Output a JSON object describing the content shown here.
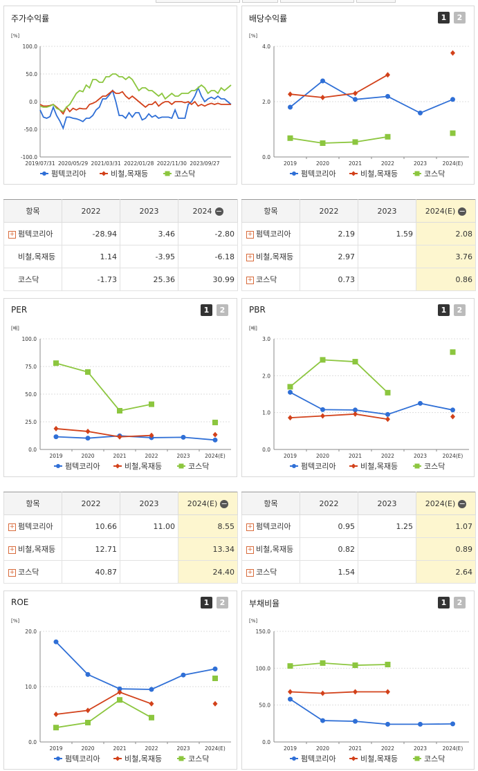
{
  "colors": {
    "company": "#2f6fd6",
    "industry": "#d2411a",
    "kosdaq": "#8cc63f"
  },
  "legend": {
    "company": "펌텍코리아",
    "industry": "비철,목재등",
    "kosdaq": "코스닥"
  },
  "buttons": {
    "one": "1",
    "two": "2"
  },
  "tables": {
    "stock": {
      "headers": [
        "항목",
        "2022",
        "2023",
        "2024"
      ],
      "rows": [
        {
          "label": "펌텍코리아",
          "icon": "+",
          "values": [
            "-28.94",
            "3.46",
            "-2.80"
          ]
        },
        {
          "label": "비철,목재등",
          "icon": "",
          "values": [
            "1.14",
            "-3.95",
            "-6.18"
          ]
        },
        {
          "label": "코스닥",
          "icon": "",
          "values": [
            "-1.73",
            "25.36",
            "30.99"
          ]
        }
      ]
    },
    "dividend": {
      "headers": [
        "항목",
        "2022",
        "2023",
        "2024(E)"
      ],
      "rows": [
        {
          "label": "펌텍코리아",
          "icon": "+",
          "values": [
            "2.19",
            "1.59",
            "2.08"
          ]
        },
        {
          "label": "비철,목재등",
          "icon": "+",
          "values": [
            "2.97",
            "",
            "3.76"
          ]
        },
        {
          "label": "코스닥",
          "icon": "+",
          "values": [
            "0.73",
            "",
            "0.86"
          ]
        }
      ]
    },
    "per": {
      "headers": [
        "항목",
        "2022",
        "2023",
        "2024(E)"
      ],
      "rows": [
        {
          "label": "펌텍코리아",
          "icon": "+",
          "values": [
            "10.66",
            "11.00",
            "8.55"
          ]
        },
        {
          "label": "비철,목재등",
          "icon": "+",
          "values": [
            "12.71",
            "",
            "13.34"
          ]
        },
        {
          "label": "코스닥",
          "icon": "+",
          "values": [
            "40.87",
            "",
            "24.40"
          ]
        }
      ]
    },
    "pbr": {
      "headers": [
        "항목",
        "2022",
        "2023",
        "2024(E)"
      ],
      "rows": [
        {
          "label": "펌텍코리아",
          "icon": "+",
          "values": [
            "0.95",
            "1.25",
            "1.07"
          ]
        },
        {
          "label": "비철,목재등",
          "icon": "+",
          "values": [
            "0.82",
            "",
            "0.89"
          ]
        },
        {
          "label": "코스닥",
          "icon": "+",
          "values": [
            "1.54",
            "",
            "2.64"
          ]
        }
      ]
    }
  },
  "chart_data": [
    {
      "id": "stock",
      "type": "line",
      "title": "주가수익률",
      "unit": "[%]",
      "ylim": [
        -100,
        100
      ],
      "yticks": [
        "100.0",
        "50.0",
        "0.0",
        "-50.0",
        "-100.0"
      ],
      "xticks": [
        "2019/07/31",
        "2020/05/29",
        "2021/03/31",
        "2022/01/28",
        "2022/11/30",
        "2023/09/27"
      ],
      "x_range": [
        0,
        58
      ],
      "series": [
        {
          "key": "company",
          "values": [
            -15,
            -28,
            -30,
            -27,
            -10,
            -25,
            -35,
            -48,
            -28,
            -28,
            -30,
            -31,
            -33,
            -36,
            -30,
            -30,
            -25,
            -15,
            -10,
            5,
            5,
            12,
            20,
            0,
            -25,
            -25,
            -30,
            -20,
            -28,
            -20,
            -20,
            -33,
            -30,
            -22,
            -28,
            -25,
            -30,
            -28,
            -28,
            -28,
            -30,
            -15,
            -30,
            -30,
            -30,
            -5,
            0,
            10,
            25,
            10,
            0,
            5,
            8,
            5,
            10,
            5,
            5,
            0,
            -5
          ]
        },
        {
          "key": "industry",
          "values": [
            -5,
            -8,
            -8,
            -7,
            -5,
            -10,
            -15,
            -22,
            -10,
            -18,
            -12,
            -15,
            -12,
            -13,
            -13,
            -5,
            -3,
            0,
            5,
            10,
            10,
            15,
            20,
            15,
            15,
            18,
            10,
            5,
            10,
            5,
            0,
            -5,
            -10,
            -5,
            -5,
            0,
            -8,
            -3,
            0,
            0,
            -5,
            0,
            0,
            0,
            -2,
            0,
            -5,
            0,
            -8,
            -5,
            -8,
            -5,
            -3,
            -5,
            -3,
            -5,
            -5,
            -5,
            -5
          ]
        },
        {
          "key": "kosdaq",
          "values": [
            -8,
            -10,
            -10,
            -8,
            -5,
            -12,
            -15,
            -18,
            -10,
            -5,
            5,
            15,
            20,
            18,
            30,
            25,
            40,
            40,
            35,
            35,
            45,
            45,
            50,
            50,
            45,
            45,
            40,
            45,
            40,
            30,
            20,
            25,
            25,
            20,
            20,
            15,
            10,
            15,
            5,
            10,
            15,
            10,
            10,
            15,
            15,
            15,
            20,
            20,
            25,
            30,
            25,
            15,
            20,
            20,
            15,
            25,
            20,
            25,
            30
          ]
        }
      ]
    },
    {
      "id": "dividend",
      "type": "line",
      "title": "배당수익률",
      "unit": "[%]",
      "ylim": [
        0,
        4
      ],
      "yticks": [
        "4.0",
        "2.0",
        "0.0"
      ],
      "categories": [
        "2019",
        "2020",
        "2021",
        "2022",
        "2023",
        "2024(E)"
      ],
      "series": [
        {
          "key": "company",
          "values": [
            1.8,
            2.75,
            2.08,
            2.19,
            1.59,
            2.08
          ]
        },
        {
          "key": "industry",
          "values": [
            2.27,
            2.15,
            2.3,
            2.97,
            null,
            3.76
          ]
        },
        {
          "key": "kosdaq",
          "values": [
            0.68,
            0.5,
            0.54,
            0.73,
            null,
            0.86
          ]
        }
      ]
    },
    {
      "id": "per",
      "type": "line",
      "title": "PER",
      "unit": "[배]",
      "ylim": [
        0,
        100
      ],
      "yticks": [
        "100.0",
        "75.0",
        "50.0",
        "25.0",
        "0.0"
      ],
      "categories": [
        "2019",
        "2020",
        "2021",
        "2022",
        "2023",
        "2024(E)"
      ],
      "series": [
        {
          "key": "company",
          "values": [
            11.5,
            10.2,
            12.3,
            10.66,
            11.0,
            8.55
          ]
        },
        {
          "key": "industry",
          "values": [
            18.8,
            16.3,
            11.4,
            12.71,
            null,
            13.34
          ]
        },
        {
          "key": "kosdaq",
          "values": [
            78,
            70,
            35,
            40.87,
            null,
            24.4
          ]
        }
      ]
    },
    {
      "id": "pbr",
      "type": "line",
      "title": "PBR",
      "unit": "[배]",
      "ylim": [
        0,
        3
      ],
      "yticks": [
        "3.0",
        "2.0",
        "1.0",
        "0.0"
      ],
      "categories": [
        "2019",
        "2020",
        "2021",
        "2022",
        "2023",
        "2024(E)"
      ],
      "series": [
        {
          "key": "company",
          "values": [
            1.55,
            1.08,
            1.07,
            0.95,
            1.25,
            1.07
          ]
        },
        {
          "key": "industry",
          "values": [
            0.86,
            0.91,
            0.96,
            0.82,
            null,
            0.89
          ]
        },
        {
          "key": "kosdaq",
          "values": [
            1.7,
            2.43,
            2.38,
            1.54,
            null,
            2.64
          ]
        }
      ]
    },
    {
      "id": "roe",
      "type": "line",
      "title": "ROE",
      "unit": "[%]",
      "ylim": [
        0,
        20
      ],
      "yticks": [
        "20.0",
        "10.0",
        "0.0"
      ],
      "categories": [
        "2019",
        "2020",
        "2021",
        "2022",
        "2023",
        "2024(E)"
      ],
      "series": [
        {
          "key": "company",
          "values": [
            18.1,
            12.2,
            9.6,
            9.5,
            12.1,
            13.2
          ]
        },
        {
          "key": "industry",
          "values": [
            5.0,
            5.7,
            9.0,
            6.9,
            null,
            6.9
          ]
        },
        {
          "key": "kosdaq",
          "values": [
            2.6,
            3.5,
            7.6,
            4.4,
            null,
            11.5
          ]
        }
      ]
    },
    {
      "id": "debt",
      "type": "line",
      "title": "부채비율",
      "unit": "[%]",
      "ylim": [
        0,
        150
      ],
      "yticks": [
        "150.0",
        "100.0",
        "50.0",
        "0.0"
      ],
      "categories": [
        "2019",
        "2020",
        "2021",
        "2022",
        "2023",
        "2024(E)"
      ],
      "series": [
        {
          "key": "company",
          "values": [
            58,
            29,
            28,
            24,
            24,
            24.5
          ]
        },
        {
          "key": "industry",
          "values": [
            68,
            66,
            68,
            68,
            null,
            null
          ]
        },
        {
          "key": "kosdaq",
          "values": [
            103,
            107,
            104,
            105,
            null,
            null
          ]
        }
      ]
    }
  ]
}
